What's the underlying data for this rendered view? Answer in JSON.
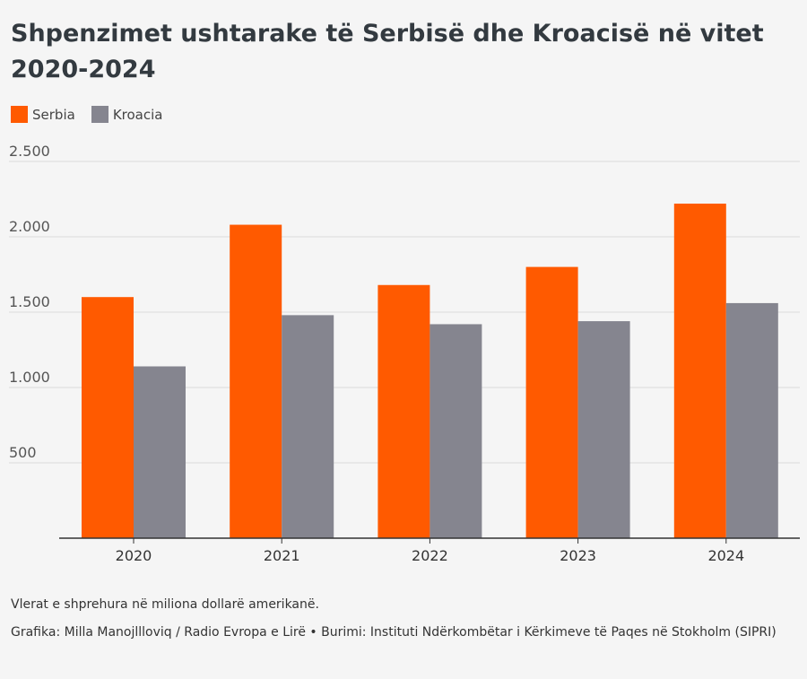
{
  "title": "Shpenzimet ushtarake të Serbisë dhe Kroacisë në vitet 2020-2024",
  "notes": {
    "unit_note": "Vlerat e shprehura në miliona dollarë amerikanë.",
    "credit": "Grafika: Milla Manojllloviq / Radio Evropa e Lirë • Burimi: Instituti Ndërkombëtar i Kërkimeve të Paqes në Stokholm (SIPRI)"
  },
  "chart_data": {
    "type": "bar",
    "title": "Shpenzimet ushtarake të Serbisë dhe Kroacisë në vitet 2020-2024",
    "categories": [
      "2020",
      "2021",
      "2022",
      "2023",
      "2024"
    ],
    "series": [
      {
        "name": "Serbia",
        "values": [
          1600,
          2080,
          1680,
          1800,
          2220
        ],
        "color": "#ff5a00"
      },
      {
        "name": "Kroacia",
        "values": [
          1140,
          1480,
          1420,
          1440,
          1560
        ],
        "color": "#85858f"
      }
    ],
    "ylim": [
      0,
      2500
    ],
    "yticks": [
      500,
      1000,
      1500,
      2000,
      2500
    ],
    "ytick_labels": [
      "500",
      "1.000",
      "1.500",
      "2.000",
      "2.500"
    ],
    "grid": true,
    "legend_position": "top-left",
    "xlabel": "",
    "ylabel": ""
  }
}
